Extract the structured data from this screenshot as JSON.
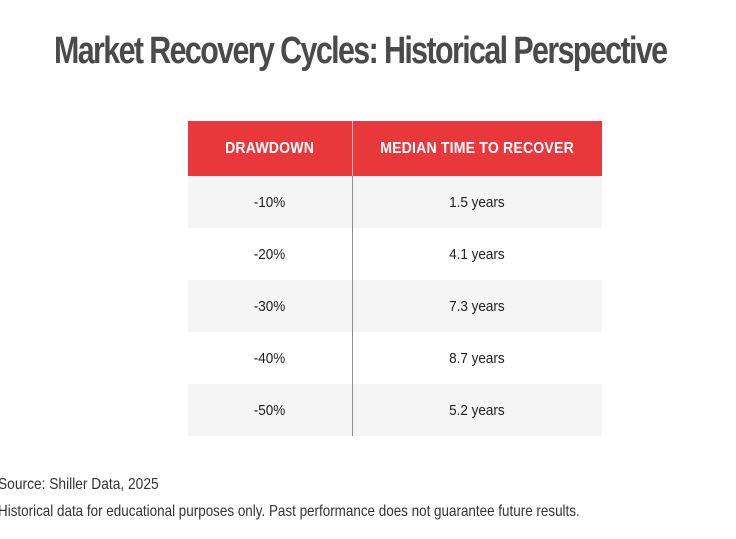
{
  "chart_data": {
    "type": "table",
    "title": "Market Recovery Cycles: Historical Perspective",
    "columns": [
      "DRAWDOWN",
      "MEDIAN TIME TO RECOVER"
    ],
    "rows": [
      {
        "drawdown": "-10%",
        "recovery": "1.5 years"
      },
      {
        "drawdown": "-20%",
        "recovery": "4.1 years"
      },
      {
        "drawdown": "-30%",
        "recovery": "7.3 years"
      },
      {
        "drawdown": "-40%",
        "recovery": "8.7 years"
      },
      {
        "drawdown": "-50%",
        "recovery": "5.2 years"
      }
    ],
    "drawdown_values": [
      -10,
      -20,
      -30,
      -40,
      -50
    ],
    "recovery_years": [
      1.5,
      4.1,
      7.3,
      8.7,
      5.2
    ]
  },
  "footer": {
    "source": "Source: Shiller Data, 2025",
    "disclaimer": "Historical data for educational purposes only. Past performance does not guarantee future results."
  },
  "colors": {
    "header_bg": "#e8383b",
    "header_text": "#ffffff",
    "title_text": "#4a4a4a",
    "stripe_bg": "#f5f5f5"
  }
}
